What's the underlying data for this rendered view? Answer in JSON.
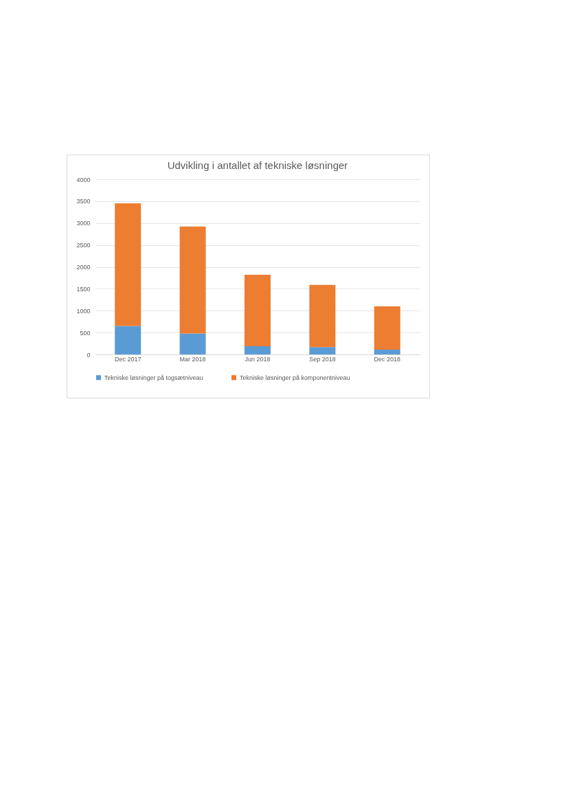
{
  "chart_data": {
    "type": "bar",
    "title": "Udvikling i antallet af tekniske løsninger",
    "stacked": true,
    "categories": [
      "Dec 2017",
      "Mar 2018",
      "Jun 2018",
      "Sep 2018",
      "Dec 2018"
    ],
    "series": [
      {
        "name": "Tekniske løsninger på togsætniveau",
        "color": "#5b9bd5",
        "values": [
          650,
          480,
          190,
          170,
          110
        ]
      },
      {
        "name": "Tekniske løsninger på komponentniveau",
        "color": "#ed7d31",
        "values": [
          2800,
          2440,
          1630,
          1420,
          990
        ]
      }
    ],
    "ylim": [
      0,
      4000
    ],
    "yticks": [
      0,
      500,
      1000,
      1500,
      2000,
      2500,
      3000,
      3500,
      4000
    ],
    "grid": "y",
    "legend": "bottom"
  }
}
